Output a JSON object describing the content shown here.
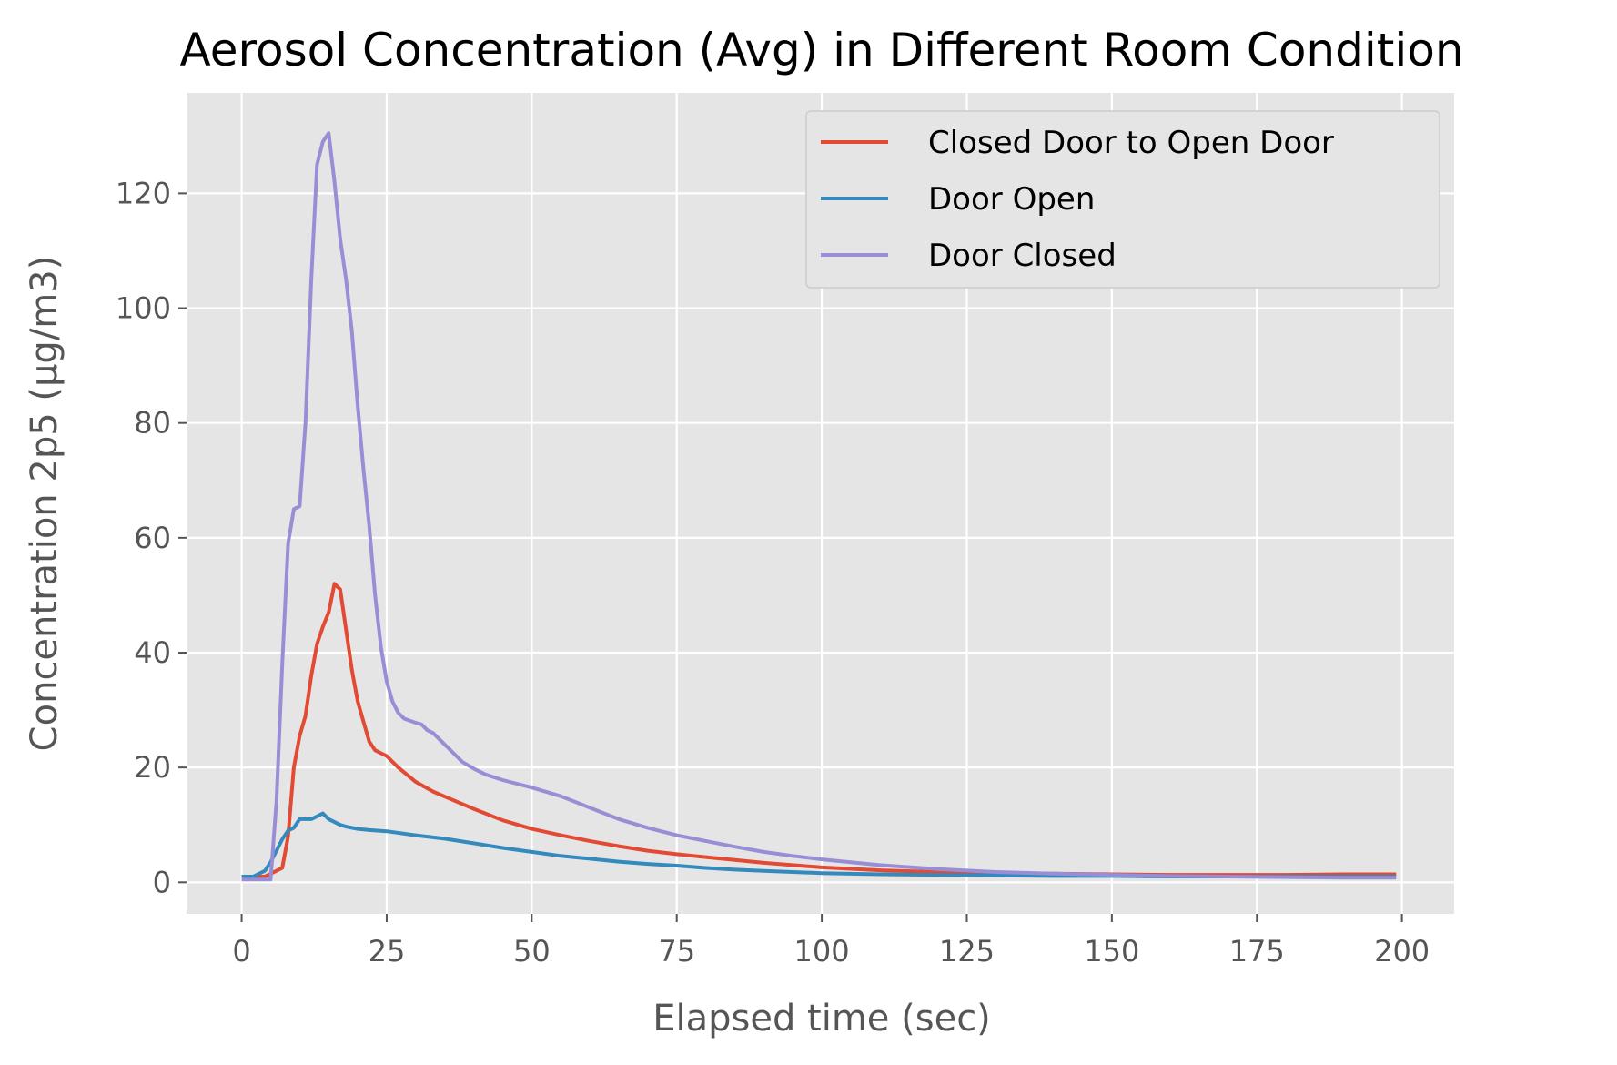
{
  "chart_data": {
    "type": "line",
    "title": "Aerosol Concentration (Avg) in Different Room Condition",
    "xlabel": "Elapsed time (sec)",
    "ylabel": "Concentration 2p5 (µg/m3)",
    "xlim": [
      -9.5,
      209
    ],
    "ylim": [
      -5.5,
      137.5
    ],
    "xticks": [
      0,
      25,
      50,
      75,
      100,
      125,
      150,
      175,
      200
    ],
    "yticks": [
      0,
      20,
      40,
      60,
      80,
      100,
      120
    ],
    "grid": true,
    "legend_position": "top-right",
    "background": "#e5e5e5",
    "series": [
      {
        "name": "Closed Door to Open Door",
        "color": "#e24a33",
        "x": [
          0,
          2,
          4,
          5,
          6,
          7,
          8,
          9,
          10,
          11,
          12,
          13,
          14,
          15,
          16,
          17,
          18,
          19,
          20,
          21,
          22,
          23,
          24,
          25,
          27,
          30,
          33,
          36,
          40,
          45,
          50,
          55,
          60,
          65,
          70,
          75,
          80,
          85,
          90,
          95,
          100,
          110,
          120,
          130,
          140,
          150,
          160,
          170,
          180,
          190,
          199
        ],
        "y": [
          1,
          1,
          1,
          1.5,
          2,
          2.5,
          8,
          20,
          25.5,
          29,
          36,
          41.5,
          44.5,
          47,
          52,
          51,
          44,
          37,
          31.5,
          28,
          24.5,
          23,
          22.5,
          22,
          20,
          17.5,
          15.8,
          14.5,
          12.8,
          10.8,
          9.3,
          8.2,
          7.2,
          6.3,
          5.5,
          4.9,
          4.4,
          3.9,
          3.4,
          3,
          2.6,
          2.1,
          1.8,
          1.6,
          1.5,
          1.4,
          1.3,
          1.3,
          1.3,
          1.4,
          1.4
        ]
      },
      {
        "name": "Door Open",
        "color": "#348abd",
        "x": [
          0,
          1,
          2,
          3,
          4,
          5,
          6,
          7,
          8,
          9,
          10,
          11,
          12,
          13,
          14,
          15,
          16,
          17,
          18,
          20,
          22,
          25,
          30,
          35,
          40,
          45,
          50,
          55,
          60,
          65,
          70,
          75,
          80,
          85,
          90,
          95,
          100,
          110,
          120,
          130,
          140,
          150,
          160,
          170,
          180,
          190,
          199
        ],
        "y": [
          1,
          1,
          1,
          1.5,
          2,
          3.5,
          5.5,
          7.5,
          9,
          9.5,
          11,
          11,
          11,
          11.5,
          12,
          11,
          10.5,
          10,
          9.7,
          9.3,
          9.1,
          8.9,
          8.2,
          7.6,
          6.8,
          6,
          5.3,
          4.6,
          4.1,
          3.6,
          3.2,
          2.9,
          2.5,
          2.2,
          2,
          1.8,
          1.6,
          1.4,
          1.3,
          1.2,
          1.1,
          1.1,
          1,
          1,
          1,
          1,
          1
        ]
      },
      {
        "name": "Door Closed",
        "color": "#988ed5",
        "x": [
          0,
          2,
          4,
          5,
          6,
          7,
          8,
          9,
          10,
          11,
          12,
          13,
          14,
          15,
          16,
          17,
          18,
          19,
          20,
          21,
          22,
          23,
          24,
          25,
          26,
          27,
          28,
          30,
          31,
          32,
          33,
          34,
          35,
          36,
          37,
          38,
          40,
          42,
          45,
          50,
          55,
          60,
          65,
          70,
          75,
          80,
          85,
          90,
          95,
          100,
          110,
          120,
          130,
          140,
          150,
          160,
          170,
          180,
          190,
          199
        ],
        "y": [
          0.5,
          0.5,
          0.5,
          0.5,
          14,
          38,
          59,
          65,
          65.5,
          80,
          105,
          125,
          129,
          130.5,
          122,
          112,
          105,
          96,
          83,
          72,
          62,
          50,
          41,
          35,
          31.5,
          29.5,
          28.5,
          27.8,
          27.5,
          26.5,
          26,
          25,
          24,
          23,
          22,
          21,
          19.8,
          18.8,
          17.8,
          16.5,
          15,
          13,
          11,
          9.5,
          8.2,
          7.2,
          6.2,
          5.3,
          4.6,
          4,
          3,
          2.3,
          1.8,
          1.5,
          1.3,
          1.1,
          1,
          0.9,
          0.8,
          0.8
        ]
      }
    ]
  }
}
